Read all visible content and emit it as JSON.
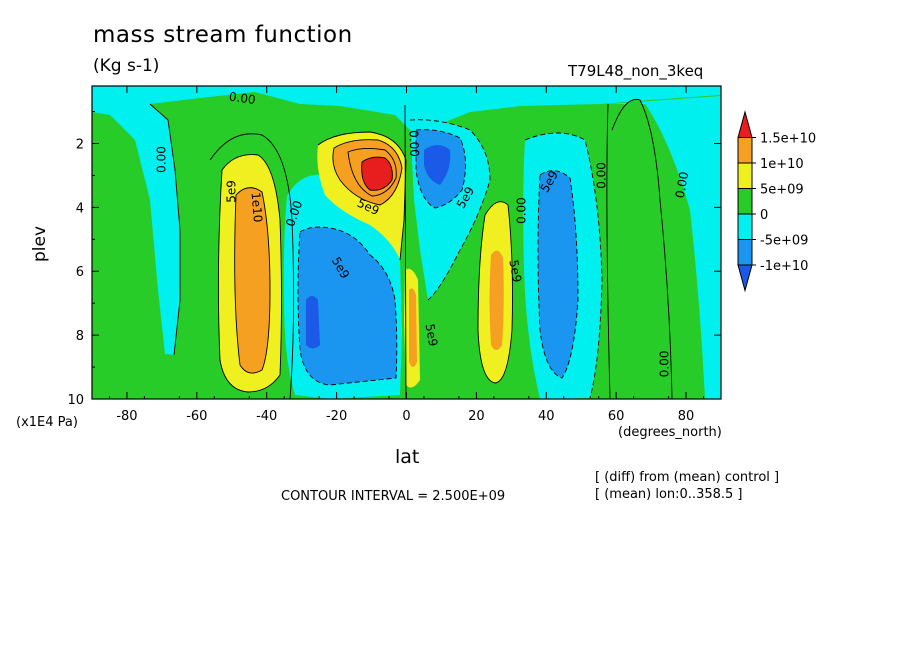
{
  "figure": {
    "title": "mass stream function",
    "units": "(Kg s-1)",
    "run_name": "T79L48_non_3keq",
    "y_unit": "(x1E4 Pa)",
    "x_unit": "(degrees_north)",
    "contour_interval": "CONTOUR INTERVAL = 2.500E+09",
    "note_diff": "[ (diff) from (mean) control ]",
    "note_mean": "[ (mean) lon:0..358.5 ]"
  },
  "chart_data": {
    "type": "heatmap",
    "title": "mass stream function",
    "subtitle": "(Kg s-1)",
    "xlabel": "lat",
    "ylabel": "plev",
    "xlim": [
      -90,
      90
    ],
    "ylim": [
      10,
      0.2
    ],
    "y_reversed": true,
    "x_ticks": [
      -80,
      -60,
      -40,
      -20,
      0,
      20,
      40,
      60,
      80
    ],
    "x_tick_labels": [
      "-80",
      "-60",
      "-40",
      "-20",
      "0",
      "20",
      "40",
      "60",
      "80"
    ],
    "y_ticks": [
      2,
      4,
      6,
      8,
      10
    ],
    "y_tick_labels": [
      "2",
      "4",
      "6",
      "8",
      "10"
    ],
    "contour_interval": 2500000000,
    "colorbar": {
      "labels": [
        "1.5e+10",
        "1e+10",
        "5e+09",
        "0",
        "-5e+09",
        "-1e+10"
      ],
      "colors": [
        "#e81e1e",
        "#f5a020",
        "#f0f020",
        "#28cc28",
        "#00f0f0",
        "#1a96f0",
        "#1a5ae6"
      ]
    },
    "contour_labels": [
      {
        "text": "0.00",
        "lat": -47,
        "plev": 0.6,
        "angle": 8
      },
      {
        "text": "0.00",
        "lat": -70,
        "plev": 2.5,
        "angle": -90
      },
      {
        "text": "5e9",
        "lat": -50,
        "plev": 3.5,
        "angle": -90
      },
      {
        "text": "1e10",
        "lat": -43,
        "plev": 4.0,
        "angle": 85
      },
      {
        "text": "0.00",
        "lat": -32,
        "plev": 4.2,
        "angle": -70
      },
      {
        "text": "5e9",
        "lat": -19,
        "plev": 5.9,
        "angle": 60
      },
      {
        "text": "5e9",
        "lat": -11,
        "plev": 4.0,
        "angle": 25
      },
      {
        "text": "0.00",
        "lat": 2,
        "plev": 2.0,
        "angle": 88
      },
      {
        "text": "5e9",
        "lat": 7,
        "plev": 8.0,
        "angle": 80
      },
      {
        "text": "5e9",
        "lat": 17,
        "plev": 3.7,
        "angle": -60
      },
      {
        "text": "0.00",
        "lat": 33,
        "plev": 4.1,
        "angle": -90
      },
      {
        "text": "5e9",
        "lat": 31,
        "plev": 6.0,
        "angle": 80
      },
      {
        "text": "5e9",
        "lat": 41,
        "plev": 3.2,
        "angle": -60
      },
      {
        "text": "0.00",
        "lat": 56,
        "plev": 3.0,
        "angle": -90
      },
      {
        "text": "0.00",
        "lat": 79,
        "plev": 3.3,
        "angle": -80
      },
      {
        "text": "0.00",
        "lat": 74,
        "plev": 8.9,
        "angle": -90
      }
    ]
  }
}
